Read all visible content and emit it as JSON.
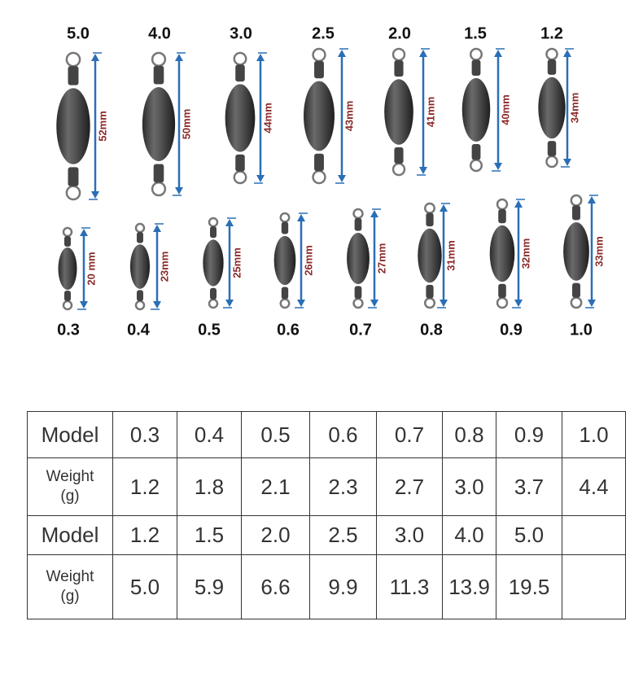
{
  "top_row": [
    {
      "model": "5.0",
      "length": "52mm"
    },
    {
      "model": "4.0",
      "length": "50mm"
    },
    {
      "model": "3.0",
      "length": "44mm"
    },
    {
      "model": "2.5",
      "length": "43mm"
    },
    {
      "model": "2.0",
      "length": "41mm"
    },
    {
      "model": "1.5",
      "length": "40mm"
    },
    {
      "model": "1.2",
      "length": "34mm"
    }
  ],
  "bottom_row": [
    {
      "model": "0.3",
      "length": "20 mm"
    },
    {
      "model": "0.4",
      "length": "23mm"
    },
    {
      "model": "0.5",
      "length": "25mm"
    },
    {
      "model": "0.6",
      "length": "26mm"
    },
    {
      "model": "0.7",
      "length": "27mm"
    },
    {
      "model": "0.8",
      "length": "31mm"
    },
    {
      "model": "0.9",
      "length": "32mm"
    },
    {
      "model": "1.0",
      "length": "33mm"
    }
  ],
  "table": {
    "rows": [
      {
        "header": "Model",
        "cells": [
          "0.3",
          "0.4",
          "0.5",
          "0.6",
          "0.7",
          "0.8",
          "0.9",
          "1.0"
        ]
      },
      {
        "header": "Weight\n(g)",
        "cells": [
          "1.2",
          "1.8",
          "2.1",
          "2.3",
          "2.7",
          "3.0",
          "3.7",
          "4.4"
        ]
      },
      {
        "header": "Model",
        "cells": [
          "1.2",
          "1.5",
          "2.0",
          "2.5",
          "3.0",
          "4.0",
          "5.0"
        ]
      },
      {
        "header": "Weight\n(g)",
        "cells": [
          "5.0",
          "5.9",
          "6.6",
          "9.9",
          "11.3",
          "13.9",
          "19.5"
        ]
      }
    ]
  }
}
